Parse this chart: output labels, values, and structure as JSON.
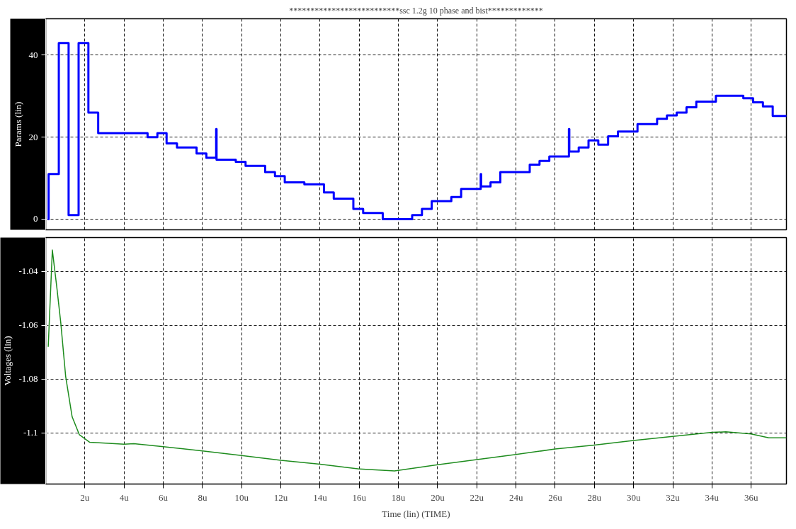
{
  "chart_data": [
    {
      "type": "step",
      "title": "**************************ssc 1.2g 10 phase and bist*************",
      "ylabel": "Params (lin)",
      "xlim": [
        0,
        37.8
      ],
      "ylim": [
        -2.6,
        48.9
      ],
      "yticks": [
        0,
        20,
        40
      ],
      "xticks": [
        {
          "value": 2,
          "label": null
        },
        {
          "value": 4,
          "label": null
        },
        {
          "value": 6,
          "label": null
        },
        {
          "value": 8,
          "label": null
        },
        {
          "value": 10,
          "label": null
        },
        {
          "value": 12,
          "label": null
        },
        {
          "value": 14,
          "label": null
        },
        {
          "value": 16,
          "label": null
        },
        {
          "value": 18,
          "label": null
        },
        {
          "value": 20,
          "label": null
        },
        {
          "value": 22,
          "label": null
        },
        {
          "value": 24,
          "label": null
        },
        {
          "value": 26,
          "label": null
        },
        {
          "value": 28,
          "label": null
        },
        {
          "value": 30,
          "label": null
        },
        {
          "value": 32,
          "label": null
        },
        {
          "value": 34,
          "label": null
        },
        {
          "value": 36,
          "label": null
        }
      ],
      "tick_labels": "y",
      "grid": true,
      "line_style": "solid",
      "series": [
        {
          "color": "#0000ff",
          "x": [
            0.1,
            0.15,
            0.67,
            1.17,
            1.68,
            2.18,
            2.68,
            5.2,
            5.7,
            6.17,
            6.7,
            7.7,
            8.2,
            8.7,
            8.72,
            9.7,
            10.2,
            11.2,
            11.7,
            12.2,
            13.2,
            14.2,
            14.7,
            15.7,
            16.2,
            17.2,
            18.7,
            19.2,
            19.7,
            20.7,
            21.2,
            22.2,
            22.22,
            22.7,
            23.2,
            24.7,
            25.2,
            25.7,
            26.7,
            26.72,
            27.2,
            27.7,
            28.2,
            28.7,
            29.2,
            30.2,
            31.2,
            31.7,
            32.2,
            32.7,
            33.2,
            34.2,
            35.6,
            36.1,
            36.6,
            37.1,
            37.8
          ],
          "values": [
            0,
            11,
            43,
            1,
            43,
            26,
            21,
            20,
            21,
            18.5,
            17.5,
            16,
            15,
            22,
            14.5,
            14,
            13,
            11.5,
            10.5,
            9,
            8.5,
            6.5,
            5,
            2.5,
            1.5,
            0,
            1,
            2.5,
            4.4,
            5.4,
            7.4,
            11,
            8,
            9,
            11.5,
            13.3,
            14.2,
            15.3,
            22,
            16.5,
            17.5,
            19.2,
            18.2,
            20.2,
            21.4,
            23.2,
            24.5,
            25.3,
            26,
            27.3,
            28.7,
            30.1,
            29.5,
            28.5,
            27.5,
            25.2,
            25
          ]
        }
      ]
    },
    {
      "type": "line",
      "xlabel": "Time (lin) (TIME)",
      "ylabel": "Voltages (lin)",
      "xlim": [
        0,
        37.8
      ],
      "ylim": [
        -1.119,
        -1.0274
      ],
      "yticks": [
        -1.04,
        -1.06,
        -1.08,
        -1.1
      ],
      "xticks": [
        {
          "value": 2,
          "label": "2u"
        },
        {
          "value": 4,
          "label": "4u"
        },
        {
          "value": 6,
          "label": "6u"
        },
        {
          "value": 8,
          "label": "8u"
        },
        {
          "value": 10,
          "label": "10u"
        },
        {
          "value": 12,
          "label": "12u"
        },
        {
          "value": 14,
          "label": "14u"
        },
        {
          "value": 16,
          "label": "16u"
        },
        {
          "value": 18,
          "label": "18u"
        },
        {
          "value": 20,
          "label": "20u"
        },
        {
          "value": 22,
          "label": "22u"
        },
        {
          "value": 24,
          "label": "24u"
        },
        {
          "value": 26,
          "label": "26u"
        },
        {
          "value": 28,
          "label": "28u"
        },
        {
          "value": 30,
          "label": "30u"
        },
        {
          "value": 32,
          "label": "32u"
        },
        {
          "value": 34,
          "label": "34u"
        },
        {
          "value": 36,
          "label": "36u"
        }
      ],
      "grid": true,
      "line_style": "solid",
      "series": [
        {
          "color": "#1e8c1e",
          "x": [
            0.13,
            0.34,
            0.57,
            0.77,
            1.02,
            1.35,
            1.72,
            2.25,
            4.0,
            4.5,
            6.0,
            8.0,
            10.0,
            12.0,
            14.0,
            16.0,
            17.8,
            20.0,
            22.0,
            24.0,
            26.0,
            28.0,
            30.0,
            32.0,
            34.0,
            34.7,
            36.0,
            36.9,
            37.8
          ],
          "values": [
            -1.068,
            -1.032,
            -1.046,
            -1.059,
            -1.079,
            -1.094,
            -1.1007,
            -1.1035,
            -1.1042,
            -1.104,
            -1.1051,
            -1.1067,
            -1.1084,
            -1.1102,
            -1.1116,
            -1.1134,
            -1.1141,
            -1.1118,
            -1.1099,
            -1.108,
            -1.106,
            -1.1045,
            -1.1028,
            -1.1013,
            -1.0998,
            -1.0996,
            -1.1004,
            -1.1018,
            -1.1018
          ]
        }
      ]
    }
  ]
}
